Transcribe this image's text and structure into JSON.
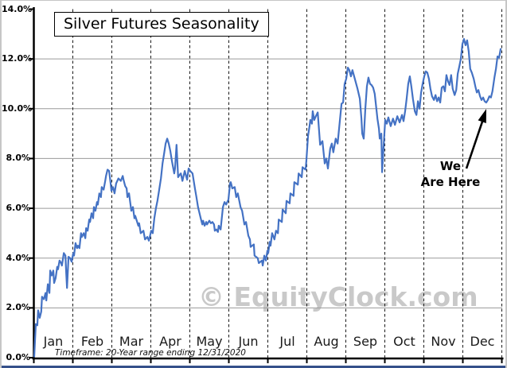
{
  "chart": {
    "title": "Silver Futures Seasonality",
    "watermark": "© EquityClock.com",
    "timeframe_note": "Timeframe:   20-Year range ending 12/31/2020",
    "annotation": {
      "line1": "We",
      "line2": "Are Here"
    },
    "colors": {
      "line": "#4472c4",
      "solid_grid": "#9a9a9a",
      "dashed_grid": "#1a1a1a",
      "axis": "#000000",
      "watermark": "#c9c9c9",
      "bottom_bar": "#35508a"
    }
  },
  "chart_data": {
    "type": "line",
    "title": "Silver Futures Seasonality",
    "x_axis": {
      "unit": "month",
      "tick_labels": [
        "Jan",
        "Feb",
        "Mar",
        "Apr",
        "May",
        "Jun",
        "Jul",
        "Aug",
        "Sep",
        "Oct",
        "Nov",
        "Dec"
      ],
      "range": [
        0,
        12
      ],
      "gridlines": "dashed vertical at each month boundary"
    },
    "y_axis": {
      "unit": "percent",
      "tick_labels": [
        "0.0%",
        "2.0%",
        "4.0%",
        "6.0%",
        "8.0%",
        "10.0%",
        "12.0%",
        "14.0%"
      ],
      "tick_values": [
        0,
        2,
        4,
        6,
        8,
        10,
        12,
        14
      ],
      "range": [
        0,
        14
      ],
      "gridlines": "solid horizontal every 2%"
    },
    "annotation": {
      "text": "We Are Here",
      "points_to": {
        "x_month": 11.6,
        "y_pct": 10.3
      }
    },
    "series": [
      {
        "name": "seasonality",
        "points": [
          [
            0.01,
            0.05
          ],
          [
            0.05,
            1.35
          ],
          [
            0.09,
            1.3
          ],
          [
            0.11,
            1.9
          ],
          [
            0.15,
            1.6
          ],
          [
            0.19,
            1.85
          ],
          [
            0.21,
            2.45
          ],
          [
            0.26,
            2.35
          ],
          [
            0.3,
            2.6
          ],
          [
            0.32,
            2.3
          ],
          [
            0.36,
            2.95
          ],
          [
            0.4,
            2.6
          ],
          [
            0.42,
            3.5
          ],
          [
            0.46,
            3.3
          ],
          [
            0.5,
            3.5
          ],
          [
            0.52,
            3.0
          ],
          [
            0.56,
            3.2
          ],
          [
            0.6,
            3.65
          ],
          [
            0.62,
            3.55
          ],
          [
            0.66,
            3.9
          ],
          [
            0.7,
            3.8
          ],
          [
            0.72,
            3.7
          ],
          [
            0.77,
            4.2
          ],
          [
            0.81,
            4.1
          ],
          [
            0.83,
            3.4
          ],
          [
            0.85,
            2.8
          ],
          [
            0.89,
            4.05
          ],
          [
            0.93,
            4.0
          ],
          [
            0.97,
            3.85
          ],
          [
            1.01,
            4.2
          ],
          [
            1.03,
            4.1
          ],
          [
            1.07,
            4.6
          ],
          [
            1.11,
            4.4
          ],
          [
            1.13,
            4.5
          ],
          [
            1.17,
            4.4
          ],
          [
            1.21,
            5.0
          ],
          [
            1.23,
            4.85
          ],
          [
            1.28,
            5.0
          ],
          [
            1.32,
            4.8
          ],
          [
            1.34,
            5.2
          ],
          [
            1.38,
            5.1
          ],
          [
            1.42,
            5.55
          ],
          [
            1.44,
            5.45
          ],
          [
            1.48,
            5.8
          ],
          [
            1.52,
            5.6
          ],
          [
            1.54,
            6.05
          ],
          [
            1.58,
            5.9
          ],
          [
            1.62,
            6.25
          ],
          [
            1.64,
            6.15
          ],
          [
            1.68,
            6.6
          ],
          [
            1.72,
            6.45
          ],
          [
            1.74,
            6.85
          ],
          [
            1.79,
            6.75
          ],
          [
            1.83,
            7.1
          ],
          [
            1.85,
            7.3
          ],
          [
            1.89,
            7.55
          ],
          [
            1.93,
            7.5
          ],
          [
            1.97,
            7.0
          ],
          [
            1.99,
            6.7
          ],
          [
            2.03,
            6.85
          ],
          [
            2.07,
            6.6
          ],
          [
            2.11,
            7.0
          ],
          [
            2.17,
            7.2
          ],
          [
            2.23,
            7.1
          ],
          [
            2.28,
            7.3
          ],
          [
            2.3,
            7.15
          ],
          [
            2.34,
            6.9
          ],
          [
            2.38,
            6.8
          ],
          [
            2.4,
            6.45
          ],
          [
            2.44,
            6.6
          ],
          [
            2.5,
            5.9
          ],
          [
            2.54,
            6.05
          ],
          [
            2.58,
            5.6
          ],
          [
            2.6,
            5.7
          ],
          [
            2.68,
            5.3
          ],
          [
            2.7,
            5.4
          ],
          [
            2.74,
            5.0
          ],
          [
            2.81,
            5.1
          ],
          [
            2.85,
            4.75
          ],
          [
            2.91,
            4.85
          ],
          [
            2.95,
            4.7
          ],
          [
            3.01,
            5.1
          ],
          [
            3.05,
            5.0
          ],
          [
            3.09,
            5.6
          ],
          [
            3.13,
            6.0
          ],
          [
            3.17,
            6.3
          ],
          [
            3.21,
            6.7
          ],
          [
            3.26,
            7.2
          ],
          [
            3.3,
            7.8
          ],
          [
            3.34,
            8.2
          ],
          [
            3.38,
            8.6
          ],
          [
            3.42,
            8.8
          ],
          [
            3.46,
            8.6
          ],
          [
            3.5,
            8.3
          ],
          [
            3.54,
            7.9
          ],
          [
            3.6,
            7.4
          ],
          [
            3.62,
            7.6
          ],
          [
            3.66,
            8.55
          ],
          [
            3.7,
            7.25
          ],
          [
            3.74,
            7.35
          ],
          [
            3.77,
            7.4
          ],
          [
            3.81,
            7.1
          ],
          [
            3.87,
            7.5
          ],
          [
            3.93,
            7.15
          ],
          [
            3.97,
            7.6
          ],
          [
            4.01,
            7.5
          ],
          [
            4.07,
            7.4
          ],
          [
            4.13,
            6.8
          ],
          [
            4.17,
            6.45
          ],
          [
            4.21,
            6.05
          ],
          [
            4.28,
            5.6
          ],
          [
            4.32,
            5.35
          ],
          [
            4.34,
            5.5
          ],
          [
            4.38,
            5.3
          ],
          [
            4.42,
            5.45
          ],
          [
            4.44,
            5.35
          ],
          [
            4.5,
            5.5
          ],
          [
            4.54,
            5.4
          ],
          [
            4.58,
            5.45
          ],
          [
            4.62,
            5.35
          ],
          [
            4.64,
            5.1
          ],
          [
            4.68,
            5.15
          ],
          [
            4.72,
            5.05
          ],
          [
            4.74,
            5.3
          ],
          [
            4.79,
            5.15
          ],
          [
            4.85,
            6.05
          ],
          [
            4.89,
            6.25
          ],
          [
            4.93,
            6.15
          ],
          [
            4.99,
            6.35
          ],
          [
            5.03,
            7.0
          ],
          [
            5.05,
            7.05
          ],
          [
            5.09,
            6.8
          ],
          [
            5.15,
            6.85
          ],
          [
            5.19,
            6.45
          ],
          [
            5.23,
            6.6
          ],
          [
            5.3,
            6.05
          ],
          [
            5.34,
            5.9
          ],
          [
            5.4,
            5.35
          ],
          [
            5.44,
            5.45
          ],
          [
            5.5,
            4.9
          ],
          [
            5.54,
            4.75
          ],
          [
            5.56,
            4.45
          ],
          [
            5.64,
            4.55
          ],
          [
            5.66,
            4.1
          ],
          [
            5.74,
            4.0
          ],
          [
            5.77,
            3.8
          ],
          [
            5.85,
            3.9
          ],
          [
            5.87,
            3.7
          ],
          [
            5.91,
            4.1
          ],
          [
            5.95,
            3.9
          ],
          [
            5.99,
            4.3
          ],
          [
            6.01,
            4.2
          ],
          [
            6.05,
            4.65
          ],
          [
            6.07,
            4.5
          ],
          [
            6.11,
            5.0
          ],
          [
            6.17,
            4.75
          ],
          [
            6.21,
            5.1
          ],
          [
            6.26,
            5.0
          ],
          [
            6.28,
            5.55
          ],
          [
            6.36,
            5.45
          ],
          [
            6.38,
            5.95
          ],
          [
            6.46,
            5.8
          ],
          [
            6.48,
            6.3
          ],
          [
            6.56,
            6.2
          ],
          [
            6.58,
            6.6
          ],
          [
            6.66,
            6.5
          ],
          [
            6.68,
            7.05
          ],
          [
            6.77,
            6.95
          ],
          [
            6.79,
            7.4
          ],
          [
            6.87,
            7.25
          ],
          [
            6.89,
            7.65
          ],
          [
            6.97,
            7.55
          ],
          [
            6.99,
            7.95
          ],
          [
            7.03,
            8.9
          ],
          [
            7.07,
            9.3
          ],
          [
            7.09,
            9.55
          ],
          [
            7.13,
            9.4
          ],
          [
            7.15,
            9.9
          ],
          [
            7.19,
            9.55
          ],
          [
            7.23,
            9.7
          ],
          [
            7.28,
            9.85
          ],
          [
            7.34,
            8.55
          ],
          [
            7.4,
            8.7
          ],
          [
            7.46,
            7.8
          ],
          [
            7.5,
            8.0
          ],
          [
            7.54,
            7.6
          ],
          [
            7.6,
            8.4
          ],
          [
            7.64,
            8.6
          ],
          [
            7.68,
            8.25
          ],
          [
            7.74,
            8.8
          ],
          [
            7.79,
            8.6
          ],
          [
            7.85,
            9.55
          ],
          [
            7.89,
            10.2
          ],
          [
            7.93,
            10.25
          ],
          [
            7.97,
            11.0
          ],
          [
            8.01,
            11.2
          ],
          [
            8.05,
            11.65
          ],
          [
            8.09,
            11.55
          ],
          [
            8.13,
            11.3
          ],
          [
            8.17,
            11.55
          ],
          [
            8.23,
            11.2
          ],
          [
            8.3,
            10.8
          ],
          [
            8.36,
            10.4
          ],
          [
            8.4,
            9.6
          ],
          [
            8.42,
            9.0
          ],
          [
            8.46,
            8.8
          ],
          [
            8.5,
            10.0
          ],
          [
            8.54,
            10.9
          ],
          [
            8.58,
            11.25
          ],
          [
            8.62,
            11.0
          ],
          [
            8.66,
            10.95
          ],
          [
            8.7,
            10.85
          ],
          [
            8.74,
            10.6
          ],
          [
            8.79,
            9.9
          ],
          [
            8.81,
            9.6
          ],
          [
            8.85,
            9.2
          ],
          [
            8.87,
            8.8
          ],
          [
            8.91,
            9.0
          ],
          [
            8.93,
            7.45
          ],
          [
            8.97,
            8.5
          ],
          [
            9.01,
            9.55
          ],
          [
            9.05,
            9.4
          ],
          [
            9.09,
            9.65
          ],
          [
            9.15,
            9.3
          ],
          [
            9.21,
            9.6
          ],
          [
            9.26,
            9.35
          ],
          [
            9.32,
            9.7
          ],
          [
            9.38,
            9.45
          ],
          [
            9.44,
            9.75
          ],
          [
            9.48,
            9.5
          ],
          [
            9.52,
            9.9
          ],
          [
            9.56,
            10.4
          ],
          [
            9.6,
            11.0
          ],
          [
            9.64,
            11.3
          ],
          [
            9.68,
            10.9
          ],
          [
            9.72,
            10.4
          ],
          [
            9.77,
            9.9
          ],
          [
            9.81,
            9.75
          ],
          [
            9.85,
            10.3
          ],
          [
            9.89,
            10.0
          ],
          [
            9.93,
            10.65
          ],
          [
            9.97,
            11.0
          ],
          [
            10.01,
            11.3
          ],
          [
            10.05,
            11.5
          ],
          [
            10.09,
            11.45
          ],
          [
            10.13,
            11.2
          ],
          [
            10.17,
            10.8
          ],
          [
            10.21,
            10.5
          ],
          [
            10.26,
            10.35
          ],
          [
            10.3,
            10.55
          ],
          [
            10.34,
            10.3
          ],
          [
            10.38,
            10.45
          ],
          [
            10.42,
            10.25
          ],
          [
            10.46,
            10.85
          ],
          [
            10.5,
            10.9
          ],
          [
            10.54,
            10.7
          ],
          [
            10.58,
            11.35
          ],
          [
            10.62,
            11.1
          ],
          [
            10.66,
            10.95
          ],
          [
            10.7,
            11.35
          ],
          [
            10.74,
            10.8
          ],
          [
            10.79,
            10.55
          ],
          [
            10.83,
            10.75
          ],
          [
            10.87,
            11.4
          ],
          [
            10.91,
            11.7
          ],
          [
            10.95,
            12.0
          ],
          [
            10.99,
            12.6
          ],
          [
            11.03,
            12.8
          ],
          [
            11.07,
            12.55
          ],
          [
            11.11,
            12.75
          ],
          [
            11.15,
            12.3
          ],
          [
            11.19,
            11.6
          ],
          [
            11.23,
            11.45
          ],
          [
            11.28,
            11.2
          ],
          [
            11.32,
            10.9
          ],
          [
            11.36,
            10.65
          ],
          [
            11.4,
            10.75
          ],
          [
            11.44,
            10.5
          ],
          [
            11.48,
            10.35
          ],
          [
            11.52,
            10.45
          ],
          [
            11.56,
            10.3
          ],
          [
            11.6,
            10.25
          ],
          [
            11.64,
            10.35
          ],
          [
            11.68,
            10.5
          ],
          [
            11.72,
            10.45
          ],
          [
            11.76,
            10.7
          ],
          [
            11.81,
            11.25
          ],
          [
            11.85,
            11.6
          ],
          [
            11.89,
            12.1
          ],
          [
            11.93,
            12.05
          ],
          [
            11.97,
            12.4
          ]
        ]
      }
    ]
  }
}
